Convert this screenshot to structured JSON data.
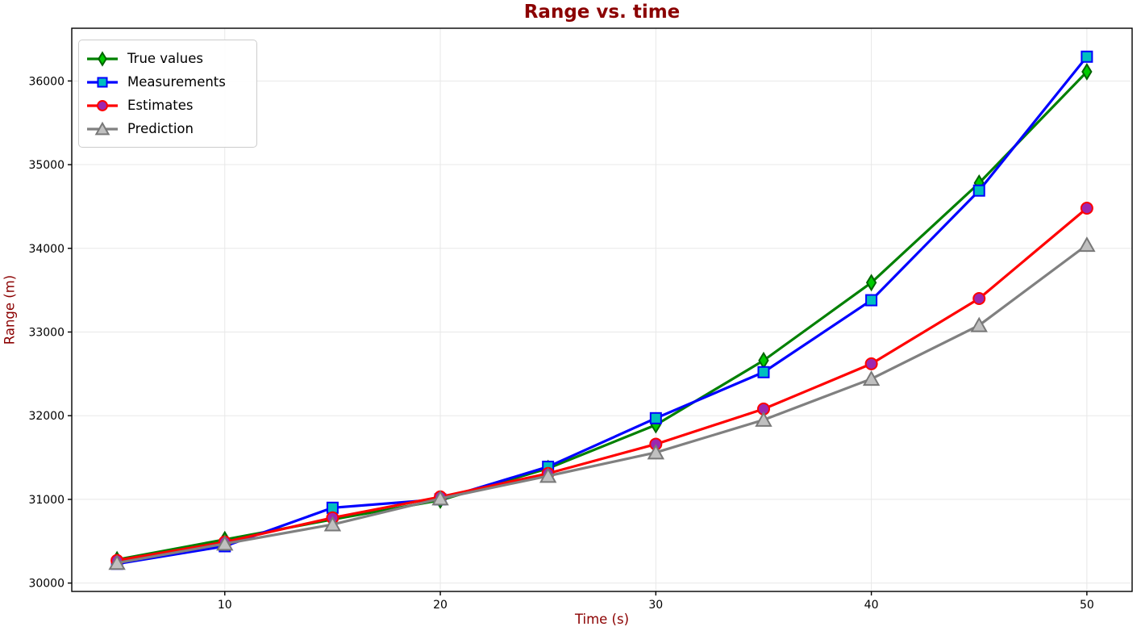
{
  "page": {
    "title": "Range vs. time"
  },
  "chart_data": {
    "type": "line",
    "title": "Range vs. time",
    "xlabel": "Time (s)",
    "ylabel": "Range (m)",
    "x": [
      5,
      10,
      15,
      20,
      25,
      30,
      35,
      40,
      45,
      50
    ],
    "series": [
      {
        "name": "True values",
        "marker": "diamond",
        "line_color": "#008000",
        "marker_fill": "#00CC00",
        "marker_edge": "#006400",
        "values": [
          30280,
          30520,
          30760,
          30990,
          31370,
          31890,
          32660,
          33590,
          34780,
          36110
        ]
      },
      {
        "name": "Measurements",
        "marker": "square",
        "line_color": "#0000FF",
        "marker_fill": "#00BFBF",
        "marker_edge": "#0000FF",
        "values": [
          30230,
          30440,
          30900,
          31000,
          31390,
          31970,
          32520,
          33380,
          34690,
          36290
        ]
      },
      {
        "name": "Estimates",
        "marker": "circle",
        "line_color": "#FF0000",
        "marker_fill": "#9C27B0",
        "marker_edge": "#FF0000",
        "values": [
          30270,
          30490,
          30780,
          31030,
          31310,
          31660,
          32080,
          32620,
          33400,
          34480
        ]
      },
      {
        "name": "Prediction",
        "marker": "triangle",
        "line_color": "#808080",
        "marker_fill": "#C0C0C0",
        "marker_edge": "#787878",
        "values": [
          30240,
          30470,
          30700,
          31010,
          31280,
          31560,
          31950,
          32440,
          33080,
          34040
        ]
      }
    ],
    "xticks": [
      10,
      20,
      30,
      40,
      50
    ],
    "yticks": [
      30000,
      31000,
      32000,
      33000,
      34000,
      35000,
      36000
    ],
    "xlim": [
      2.9,
      52.1
    ],
    "ylim": [
      29900,
      36630
    ],
    "grid": true,
    "legend_position": "upper-left",
    "colors": {
      "title": "#8B0000",
      "axis_label": "#8B0000",
      "tick_label": "#000000",
      "grid": "#E8E8E8",
      "spine": "#000000"
    }
  }
}
